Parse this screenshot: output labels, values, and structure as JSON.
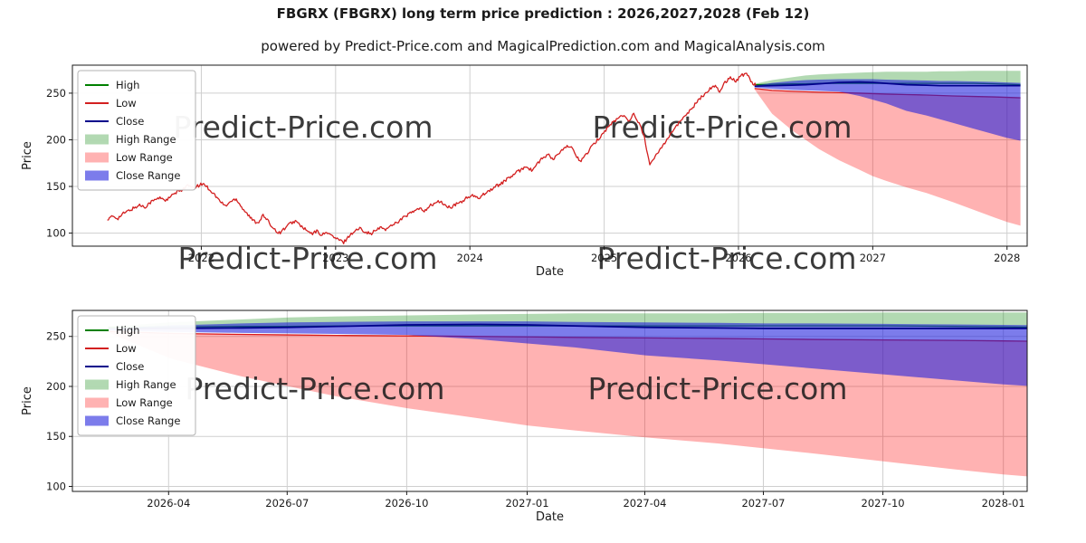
{
  "chart_data": {
    "title": "FBGRX (FBGRX) long term price prediction : 2026,2027,2028 (Feb 12)",
    "subtitle": "powered by Predict-Price.com and MagicalPrediction.com and MagicalAnalysis.com",
    "watermark": {
      "text": "Predict-Price.com",
      "color": "#c8c8c8",
      "opacity": 0.85,
      "font_size": 33
    },
    "colors": {
      "grid": "#cfcfcf",
      "spine": "#1a1a1a",
      "high_line": "#008000",
      "low_line": "#d32020",
      "close_line": "#00008b",
      "historical_line": "#d32020",
      "high_range_fill": "rgba(0,128,0,0.30)",
      "low_range_fill": "rgba(255,0,0,0.30)",
      "close_range_fill": "rgba(30,30,220,0.58)"
    },
    "legend_labels": [
      "High",
      "Low",
      "Close",
      "High Range",
      "Low Range",
      "Close Range"
    ],
    "historical": {
      "name": "FBGRX historical price",
      "points": [
        [
          2021.3,
          114
        ],
        [
          2021.34,
          118
        ],
        [
          2021.38,
          116
        ],
        [
          2021.42,
          121
        ],
        [
          2021.46,
          124
        ],
        [
          2021.5,
          127
        ],
        [
          2021.54,
          130
        ],
        [
          2021.58,
          128
        ],
        [
          2021.62,
          133
        ],
        [
          2021.66,
          136
        ],
        [
          2021.7,
          138
        ],
        [
          2021.74,
          135
        ],
        [
          2021.78,
          140
        ],
        [
          2021.82,
          144
        ],
        [
          2021.86,
          147
        ],
        [
          2021.9,
          151
        ],
        [
          2021.94,
          148
        ],
        [
          2021.98,
          151
        ],
        [
          2022.02,
          153
        ],
        [
          2022.06,
          147
        ],
        [
          2022.1,
          141
        ],
        [
          2022.14,
          134
        ],
        [
          2022.18,
          129
        ],
        [
          2022.22,
          134
        ],
        [
          2022.26,
          137
        ],
        [
          2022.3,
          128
        ],
        [
          2022.34,
          121
        ],
        [
          2022.38,
          114
        ],
        [
          2022.42,
          111
        ],
        [
          2022.46,
          119
        ],
        [
          2022.5,
          112
        ],
        [
          2022.54,
          105
        ],
        [
          2022.58,
          100
        ],
        [
          2022.62,
          105
        ],
        [
          2022.66,
          110
        ],
        [
          2022.7,
          113
        ],
        [
          2022.74,
          108
        ],
        [
          2022.78,
          103
        ],
        [
          2022.82,
          99
        ],
        [
          2022.86,
          102
        ],
        [
          2022.9,
          98
        ],
        [
          2022.94,
          101
        ],
        [
          2022.98,
          96
        ],
        [
          2023.02,
          93
        ],
        [
          2023.06,
          90
        ],
        [
          2023.1,
          97
        ],
        [
          2023.14,
          102
        ],
        [
          2023.18,
          105
        ],
        [
          2023.22,
          102
        ],
        [
          2023.26,
          99
        ],
        [
          2023.3,
          103
        ],
        [
          2023.34,
          106
        ],
        [
          2023.38,
          104
        ],
        [
          2023.42,
          109
        ],
        [
          2023.46,
          112
        ],
        [
          2023.5,
          116
        ],
        [
          2023.54,
          120
        ],
        [
          2023.58,
          123
        ],
        [
          2023.62,
          126
        ],
        [
          2023.66,
          124
        ],
        [
          2023.7,
          129
        ],
        [
          2023.74,
          132
        ],
        [
          2023.78,
          134
        ],
        [
          2023.82,
          129
        ],
        [
          2023.86,
          127
        ],
        [
          2023.9,
          131
        ],
        [
          2023.94,
          134
        ],
        [
          2023.98,
          138
        ],
        [
          2024.02,
          140
        ],
        [
          2024.06,
          137
        ],
        [
          2024.1,
          142
        ],
        [
          2024.14,
          145
        ],
        [
          2024.18,
          149
        ],
        [
          2024.22,
          152
        ],
        [
          2024.26,
          156
        ],
        [
          2024.3,
          160
        ],
        [
          2024.34,
          164
        ],
        [
          2024.38,
          168
        ],
        [
          2024.42,
          172
        ],
        [
          2024.46,
          167
        ],
        [
          2024.5,
          174
        ],
        [
          2024.54,
          180
        ],
        [
          2024.58,
          184
        ],
        [
          2024.62,
          179
        ],
        [
          2024.66,
          185
        ],
        [
          2024.7,
          190
        ],
        [
          2024.74,
          194
        ],
        [
          2024.78,
          186
        ],
        [
          2024.82,
          177
        ],
        [
          2024.86,
          183
        ],
        [
          2024.9,
          191
        ],
        [
          2024.94,
          198
        ],
        [
          2024.98,
          205
        ],
        [
          2025.02,
          212
        ],
        [
          2025.06,
          218
        ],
        [
          2025.1,
          223
        ],
        [
          2025.14,
          226
        ],
        [
          2025.18,
          221
        ],
        [
          2025.22,
          227
        ],
        [
          2025.26,
          218
        ],
        [
          2025.3,
          203
        ],
        [
          2025.34,
          172
        ],
        [
          2025.38,
          182
        ],
        [
          2025.42,
          191
        ],
        [
          2025.46,
          199
        ],
        [
          2025.5,
          208
        ],
        [
          2025.54,
          215
        ],
        [
          2025.58,
          222
        ],
        [
          2025.62,
          229
        ],
        [
          2025.66,
          235
        ],
        [
          2025.7,
          242
        ],
        [
          2025.74,
          248
        ],
        [
          2025.78,
          254
        ],
        [
          2025.82,
          258
        ],
        [
          2025.86,
          252
        ],
        [
          2025.9,
          262
        ],
        [
          2025.94,
          267
        ],
        [
          2025.98,
          263
        ],
        [
          2026.02,
          269
        ],
        [
          2026.06,
          271
        ],
        [
          2026.1,
          262
        ],
        [
          2026.13,
          258
        ]
      ]
    },
    "prediction": {
      "x": [
        2026.12,
        2026.25,
        2026.4,
        2026.5,
        2026.6,
        2026.75,
        2026.9,
        2027.0,
        2027.1,
        2027.25,
        2027.4,
        2027.5,
        2027.6,
        2027.75,
        2027.9,
        2028.0,
        2028.1
      ],
      "high": [
        259,
        259.5,
        260,
        260,
        260.5,
        260.5,
        260.5,
        260.5,
        260.5,
        260.5,
        260.5,
        260.5,
        260.5,
        260.5,
        260,
        259.5,
        259
      ],
      "low": [
        255,
        253,
        252,
        251.5,
        251,
        250.5,
        250,
        249.5,
        249,
        248.5,
        248,
        247.5,
        247,
        246.5,
        246,
        245.5,
        245
      ],
      "close": [
        257.5,
        258,
        258.5,
        259,
        260,
        261.5,
        262,
        261.5,
        260.5,
        259,
        258.5,
        258,
        258,
        258,
        258,
        258,
        258
      ],
      "high_range_top": [
        260,
        264,
        267,
        269,
        270,
        271,
        272,
        272.5,
        273,
        273,
        273,
        273.5,
        273.5,
        274,
        274,
        274,
        274
      ],
      "high_range_bottom": [
        258,
        258.5,
        259,
        259.5,
        260,
        260,
        260,
        260,
        260,
        260,
        260,
        260,
        260,
        260,
        260,
        259.5,
        259
      ],
      "low_range_top": [
        255,
        253,
        252,
        251.5,
        251,
        250.5,
        250,
        249.5,
        249,
        248.5,
        248,
        247.5,
        247,
        246.5,
        246,
        245.5,
        245
      ],
      "low_range_bottom": [
        254,
        228,
        210,
        200,
        190,
        178,
        168,
        161,
        156,
        149,
        143,
        138,
        133,
        125,
        117,
        112,
        108
      ],
      "close_range_top": [
        258,
        261,
        263,
        264,
        264.5,
        265,
        265,
        265,
        264.5,
        264,
        263.5,
        263,
        263,
        262.5,
        262,
        261.5,
        261
      ],
      "close_range_bottom": [
        256,
        254.5,
        253.5,
        253,
        252.5,
        251.5,
        247,
        243,
        239,
        231,
        226,
        222,
        218,
        212,
        206,
        202,
        199
      ]
    },
    "charts": [
      {
        "name": "top-chart",
        "type": "line",
        "xlabel": "Date",
        "ylabel": "Price",
        "xlim": [
          2021.04,
          2028.15
        ],
        "ylim": [
          86,
          280
        ],
        "xticks": [
          {
            "v": 2022,
            "label": "2022"
          },
          {
            "v": 2023,
            "label": "2023"
          },
          {
            "v": 2024,
            "label": "2024"
          },
          {
            "v": 2025,
            "label": "2025"
          },
          {
            "v": 2026,
            "label": "2026"
          },
          {
            "v": 2027,
            "label": "2027"
          },
          {
            "v": 2028,
            "label": "2028"
          }
        ],
        "yticks": [
          {
            "v": 100,
            "label": "100"
          },
          {
            "v": 150,
            "label": "150"
          },
          {
            "v": 200,
            "label": "200"
          },
          {
            "v": 250,
            "label": "250"
          }
        ],
        "draw": [
          {
            "type": "line",
            "x": "prediction.x",
            "y": "prediction.high",
            "color": "#008000",
            "width": 1.3,
            "name": "high-line"
          },
          {
            "type": "line",
            "x": "prediction.x",
            "y": "prediction.low",
            "color": "#d32020",
            "width": 1.3,
            "name": "low-line"
          },
          {
            "type": "band",
            "x": "prediction.x",
            "top": "prediction.high_range_top",
            "bottom": "prediction.high_range_bottom",
            "color": "rgba(0,128,0,0.30)",
            "name": "high-range-band"
          },
          {
            "type": "band",
            "x": "prediction.x",
            "top": "prediction.low_range_top",
            "bottom": "prediction.low_range_bottom",
            "color": "rgba(255,0,0,0.30)",
            "name": "low-range-band"
          },
          {
            "type": "band",
            "x": "prediction.x",
            "top": "prediction.close_range_top",
            "bottom": "prediction.close_range_bottom",
            "color": "rgba(30,30,220,0.58)",
            "name": "close-range-band"
          },
          {
            "type": "wm"
          },
          {
            "type": "line",
            "x": "prediction.x",
            "y": "prediction.close",
            "color": "#00008b",
            "width": 1.7,
            "name": "close-line"
          },
          {
            "type": "line",
            "points": "historical.points",
            "color": "#d32020",
            "width": 1.3,
            "jitter": 1.8,
            "step": 0.008,
            "name": "historical-price-line"
          }
        ]
      },
      {
        "name": "bottom-chart",
        "type": "line",
        "xlabel": "Date",
        "ylabel": "Price",
        "xlim": [
          2026.045,
          2028.05
        ],
        "ylim": [
          95,
          276
        ],
        "xticks": [
          {
            "v": 2026.247,
            "label": "2026-04"
          },
          {
            "v": 2026.496,
            "label": "2026-07"
          },
          {
            "v": 2026.747,
            "label": "2026-10"
          },
          {
            "v": 2027.0,
            "label": "2027-01"
          },
          {
            "v": 2027.247,
            "label": "2027-04"
          },
          {
            "v": 2027.496,
            "label": "2027-07"
          },
          {
            "v": 2027.747,
            "label": "2027-10"
          },
          {
            "v": 2028.0,
            "label": "2028-01"
          }
        ],
        "yticks": [
          {
            "v": 100,
            "label": "100"
          },
          {
            "v": 150,
            "label": "150"
          },
          {
            "v": 200,
            "label": "200"
          },
          {
            "v": 250,
            "label": "250"
          }
        ],
        "draw": [
          {
            "type": "line",
            "x": "prediction.x",
            "y": "prediction.high",
            "color": "#008000",
            "width": 1.3,
            "name": "high-line"
          },
          {
            "type": "line",
            "x": "prediction.x",
            "y": "prediction.low",
            "color": "#d32020",
            "width": 1.3,
            "name": "low-line"
          },
          {
            "type": "band",
            "x": "prediction.x",
            "top": "prediction.high_range_top",
            "bottom": "prediction.high_range_bottom",
            "color": "rgba(0,128,0,0.30)",
            "name": "high-range-band"
          },
          {
            "type": "band",
            "x": "prediction.x",
            "top": "prediction.low_range_top",
            "bottom": "prediction.low_range_bottom",
            "color": "rgba(255,0,0,0.30)",
            "name": "low-range-band"
          },
          {
            "type": "band",
            "x": "prediction.x",
            "top": "prediction.close_range_top",
            "bottom": "prediction.close_range_bottom",
            "color": "rgba(30,30,220,0.58)",
            "name": "close-range-band"
          },
          {
            "type": "wm"
          },
          {
            "type": "line",
            "x": "prediction.x",
            "y": "prediction.close",
            "color": "#00008b",
            "width": 1.7,
            "name": "close-line"
          }
        ]
      }
    ],
    "legend": [
      {
        "label": "High",
        "swatch": "line",
        "color": "#008000"
      },
      {
        "label": "Low",
        "swatch": "line",
        "color": "#d32020"
      },
      {
        "label": "Close",
        "swatch": "line",
        "color": "#00008b"
      },
      {
        "label": "High Range",
        "swatch": "patch",
        "color": "rgba(0,128,0,0.30)"
      },
      {
        "label": "Low Range",
        "swatch": "patch",
        "color": "rgba(255,0,0,0.30)"
      },
      {
        "label": "Close Range",
        "swatch": "patch",
        "color": "rgba(30,30,220,0.58)"
      }
    ]
  }
}
